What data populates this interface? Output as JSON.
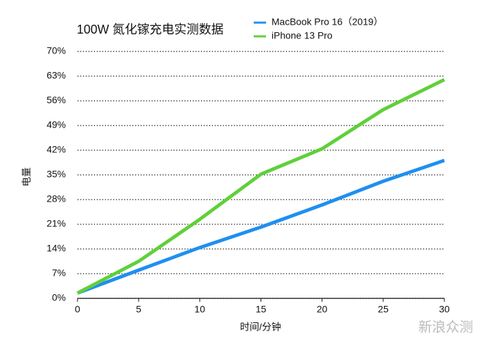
{
  "chart_data": {
    "type": "line",
    "title": "100W 氮化镓充电实测数据",
    "x_label": "时间/分钟",
    "y_label": "电量",
    "x": [
      0,
      5,
      10,
      15,
      20,
      25,
      30
    ],
    "series": [
      {
        "name": "MacBook Pro 16（2019）",
        "color": "#1f8ff0",
        "values": [
          1.5,
          8,
          14.4,
          20.2,
          26.5,
          33.2,
          39.1
        ]
      },
      {
        "name": "iPhone 13 Pro",
        "color": "#5fd03a",
        "values": [
          1.5,
          10.5,
          22.4,
          35.2,
          42.4,
          53.5,
          62
        ]
      }
    ],
    "xlim": [
      0,
      30
    ],
    "xticks": [
      0,
      5,
      10,
      15,
      20,
      25,
      30
    ],
    "ylim": [
      0,
      70
    ],
    "yticks": [
      {
        "value": 0,
        "label": "0%"
      },
      {
        "value": 7,
        "label": "7%"
      },
      {
        "value": 14,
        "label": "14%"
      },
      {
        "value": 21,
        "label": "21%"
      },
      {
        "value": 28,
        "label": "28%"
      },
      {
        "value": 35,
        "label": "35%"
      },
      {
        "value": 42,
        "label": "42%"
      },
      {
        "value": 49,
        "label": "49%"
      },
      {
        "value": 56,
        "label": "56%"
      },
      {
        "value": 63,
        "label": "63%"
      },
      {
        "value": 70,
        "label": "70%"
      }
    ],
    "grid": true,
    "legend": "top-right",
    "watermark": "新浪众测"
  }
}
